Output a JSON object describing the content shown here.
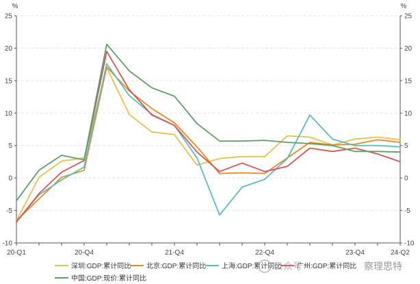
{
  "chart_data": {
    "type": "line",
    "title": "",
    "xlabel": "",
    "ylabel_left": "%",
    "ylabel_right": "%",
    "ylim": [
      -10,
      25
    ],
    "yticks": [
      -10,
      -5,
      0,
      5,
      10,
      15,
      20,
      25
    ],
    "x": [
      "20-Q1",
      "20-Q2",
      "20-Q3",
      "20-Q4",
      "21-Q1",
      "21-Q2",
      "21-Q3",
      "21-Q4",
      "22-Q1",
      "22-Q2",
      "22-Q3",
      "22-Q4",
      "23-Q1",
      "23-Q2",
      "23-Q3",
      "23-Q4",
      "24-Q1",
      "24-Q2"
    ],
    "xtick_labels": [
      {
        "index": 0,
        "label": "20-Q1"
      },
      {
        "index": 3,
        "label": "20-Q4"
      },
      {
        "index": 7,
        "label": "21-Q4"
      },
      {
        "index": 11,
        "label": "22-Q4"
      },
      {
        "index": 15,
        "label": "23-Q4"
      },
      {
        "index": 17,
        "label": "24-Q2"
      }
    ],
    "grid": true,
    "legend_position": "bottom",
    "series": [
      {
        "name": "深圳:GDP:累计同比",
        "color": "#e6c050",
        "values": [
          -6.6,
          0.1,
          2.6,
          3.1,
          17.0,
          9.8,
          7.1,
          6.7,
          2.0,
          3.0,
          3.3,
          3.3,
          6.5,
          6.3,
          5.1,
          6.0,
          6.3,
          5.9
        ]
      },
      {
        "name": "北京:GDP:累计同比",
        "color": "#e8891f",
        "values": [
          -6.6,
          -3.2,
          0.1,
          1.2,
          17.1,
          13.4,
          10.7,
          8.5,
          4.8,
          0.7,
          0.8,
          0.7,
          3.1,
          5.5,
          5.1,
          5.2,
          5.9,
          5.5
        ]
      },
      {
        "name": "上海:GDP:累计同比",
        "color": "#5bbcc0",
        "values": [
          -6.7,
          -2.6,
          -0.3,
          1.7,
          17.6,
          12.7,
          9.8,
          8.1,
          3.1,
          -5.7,
          -1.4,
          -0.2,
          3.0,
          9.7,
          6.0,
          5.0,
          5.0,
          4.8
        ]
      },
      {
        "name": "广州:GDP:累计同比",
        "color": "#d95352",
        "values": [
          -6.8,
          -2.4,
          0.9,
          2.7,
          19.5,
          13.6,
          9.7,
          8.1,
          4.0,
          1.0,
          2.3,
          1.0,
          1.8,
          4.6,
          4.1,
          4.6,
          3.7,
          2.5
        ]
      },
      {
        "name": "中国:GDP:现价:累计同比",
        "color": "#5f9e66",
        "values": [
          -3.5,
          1.2,
          3.5,
          2.8,
          20.6,
          16.5,
          13.9,
          12.6,
          8.4,
          5.7,
          5.7,
          5.8,
          5.5,
          5.3,
          5.0,
          4.1,
          4.1,
          4.0
        ]
      }
    ]
  },
  "watermark": {
    "text_prefix": "公众号 · ",
    "text_name": "察理思特"
  }
}
